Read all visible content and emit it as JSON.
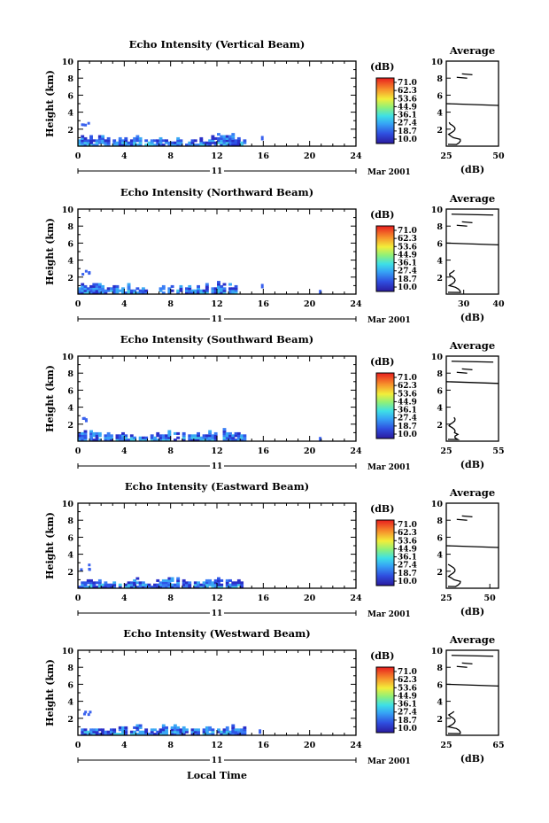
{
  "figure": {
    "xaxis_label": "Local Time",
    "date_day": "11",
    "date_month": "Mar 2001",
    "ylabel": "Height (km)",
    "colorbar_unit": "(dB)",
    "colorbar_ticks": [
      "71.0",
      "62.3",
      "53.6",
      "44.9",
      "36.1",
      "27.4",
      "18.7",
      "10.0"
    ],
    "avg_title": "Average",
    "avg_xlabel": "(dB)"
  },
  "chart_data": [
    {
      "type": "heatmap",
      "title": "Echo Intensity (Vertical Beam)",
      "ylabel": "Height (km)",
      "xlabel": "",
      "xlim": [
        0,
        24
      ],
      "x_ticks": [
        0,
        4,
        8,
        12,
        16,
        20,
        24
      ],
      "ylim": [
        0,
        10
      ],
      "y_ticks": [
        2,
        4,
        6,
        8,
        10
      ],
      "colorbar": {
        "unit": "dB",
        "range": [
          10.0,
          71.0
        ]
      },
      "echo_region": {
        "time_start": 0,
        "time_end": 14.5,
        "height_max": 2.6,
        "isolated": [
          [
            15.8,
            0.9
          ]
        ],
        "intensity_dB": [
          15,
          36
        ]
      },
      "average": {
        "title": "Average",
        "xlabel": "(dB)",
        "xlim": [
          25,
          50
        ],
        "x_ticks": [
          25,
          50
        ],
        "ylim": [
          0,
          10
        ],
        "y_ticks": [
          2,
          4,
          6,
          8,
          10
        ]
      }
    },
    {
      "type": "heatmap",
      "title": "Echo Intensity (Northward Beam)",
      "ylabel": "Height (km)",
      "xlabel": "",
      "xlim": [
        0,
        24
      ],
      "x_ticks": [
        0,
        4,
        8,
        12,
        16,
        20,
        24
      ],
      "ylim": [
        0,
        10
      ],
      "y_ticks": [
        2,
        4,
        6,
        8,
        10
      ],
      "colorbar": {
        "unit": "dB",
        "range": [
          10.0,
          71.0
        ]
      },
      "echo_region": {
        "time_start": 0,
        "time_end": 14.2,
        "height_max": 2.7,
        "isolated": [
          [
            15.8,
            0.9
          ],
          [
            20.8,
            0.2
          ]
        ],
        "intensity_dB": [
          15,
          36
        ]
      },
      "average": {
        "title": "Average",
        "xlabel": "(dB)",
        "xlim": [
          25,
          40
        ],
        "x_ticks": [
          30,
          40
        ],
        "ylim": [
          0,
          10
        ],
        "y_ticks": [
          2,
          4,
          6,
          8,
          10
        ]
      }
    },
    {
      "type": "heatmap",
      "title": "Echo Intensity (Southward Beam)",
      "ylabel": "Height (km)",
      "xlabel": "",
      "xlim": [
        0,
        24
      ],
      "x_ticks": [
        0,
        4,
        8,
        12,
        16,
        20,
        24
      ],
      "ylim": [
        0,
        10
      ],
      "y_ticks": [
        2,
        4,
        6,
        8,
        10
      ],
      "colorbar": {
        "unit": "dB",
        "range": [
          10.0,
          71.0
        ]
      },
      "echo_region": {
        "time_start": 0,
        "time_end": 14.3,
        "height_max": 2.6,
        "isolated": [
          [
            20.8,
            0.2
          ]
        ],
        "intensity_dB": [
          15,
          36
        ]
      },
      "average": {
        "title": "Average",
        "xlabel": "(dB)",
        "xlim": [
          25,
          55
        ],
        "x_ticks": [
          25,
          55
        ],
        "ylim": [
          0,
          10
        ],
        "y_ticks": [
          2,
          4,
          6,
          8,
          10
        ]
      }
    },
    {
      "type": "heatmap",
      "title": "Echo Intensity (Eastward Beam)",
      "ylabel": "Height (km)",
      "xlabel": "",
      "xlim": [
        0,
        24
      ],
      "x_ticks": [
        0,
        4,
        8,
        12,
        16,
        20,
        24
      ],
      "ylim": [
        0,
        10
      ],
      "y_ticks": [
        2,
        4,
        6,
        8,
        10
      ],
      "colorbar": {
        "unit": "dB",
        "range": [
          10.0,
          71.0
        ]
      },
      "echo_region": {
        "time_start": 0,
        "time_end": 14.2,
        "height_max": 2.6,
        "isolated": [],
        "intensity_dB": [
          15,
          36
        ]
      },
      "average": {
        "title": "Average",
        "xlabel": "(dB)",
        "xlim": [
          25,
          55
        ],
        "x_ticks": [
          25,
          50
        ],
        "ylim": [
          0,
          10
        ],
        "y_ticks": [
          2,
          4,
          6,
          8,
          10
        ]
      }
    },
    {
      "type": "heatmap",
      "title": "Echo Intensity (Westward Beam)",
      "ylabel": "Height (km)",
      "xlabel": "Local Time",
      "xlim": [
        0,
        24
      ],
      "x_ticks": [
        0,
        4,
        8,
        12,
        16,
        20,
        24
      ],
      "ylim": [
        0,
        10
      ],
      "y_ticks": [
        2,
        4,
        6,
        8,
        10
      ],
      "colorbar": {
        "unit": "dB",
        "range": [
          10.0,
          71.0
        ]
      },
      "echo_region": {
        "time_start": 0,
        "time_end": 14.5,
        "height_max": 2.6,
        "isolated": [
          [
            15.6,
            0.4
          ]
        ],
        "intensity_dB": [
          15,
          36
        ]
      },
      "average": {
        "title": "Average",
        "xlabel": "(dB)",
        "xlim": [
          25,
          65
        ],
        "x_ticks": [
          25,
          65
        ],
        "ylim": [
          0,
          10
        ],
        "y_ticks": [
          2,
          4,
          6,
          8,
          10
        ]
      }
    }
  ]
}
